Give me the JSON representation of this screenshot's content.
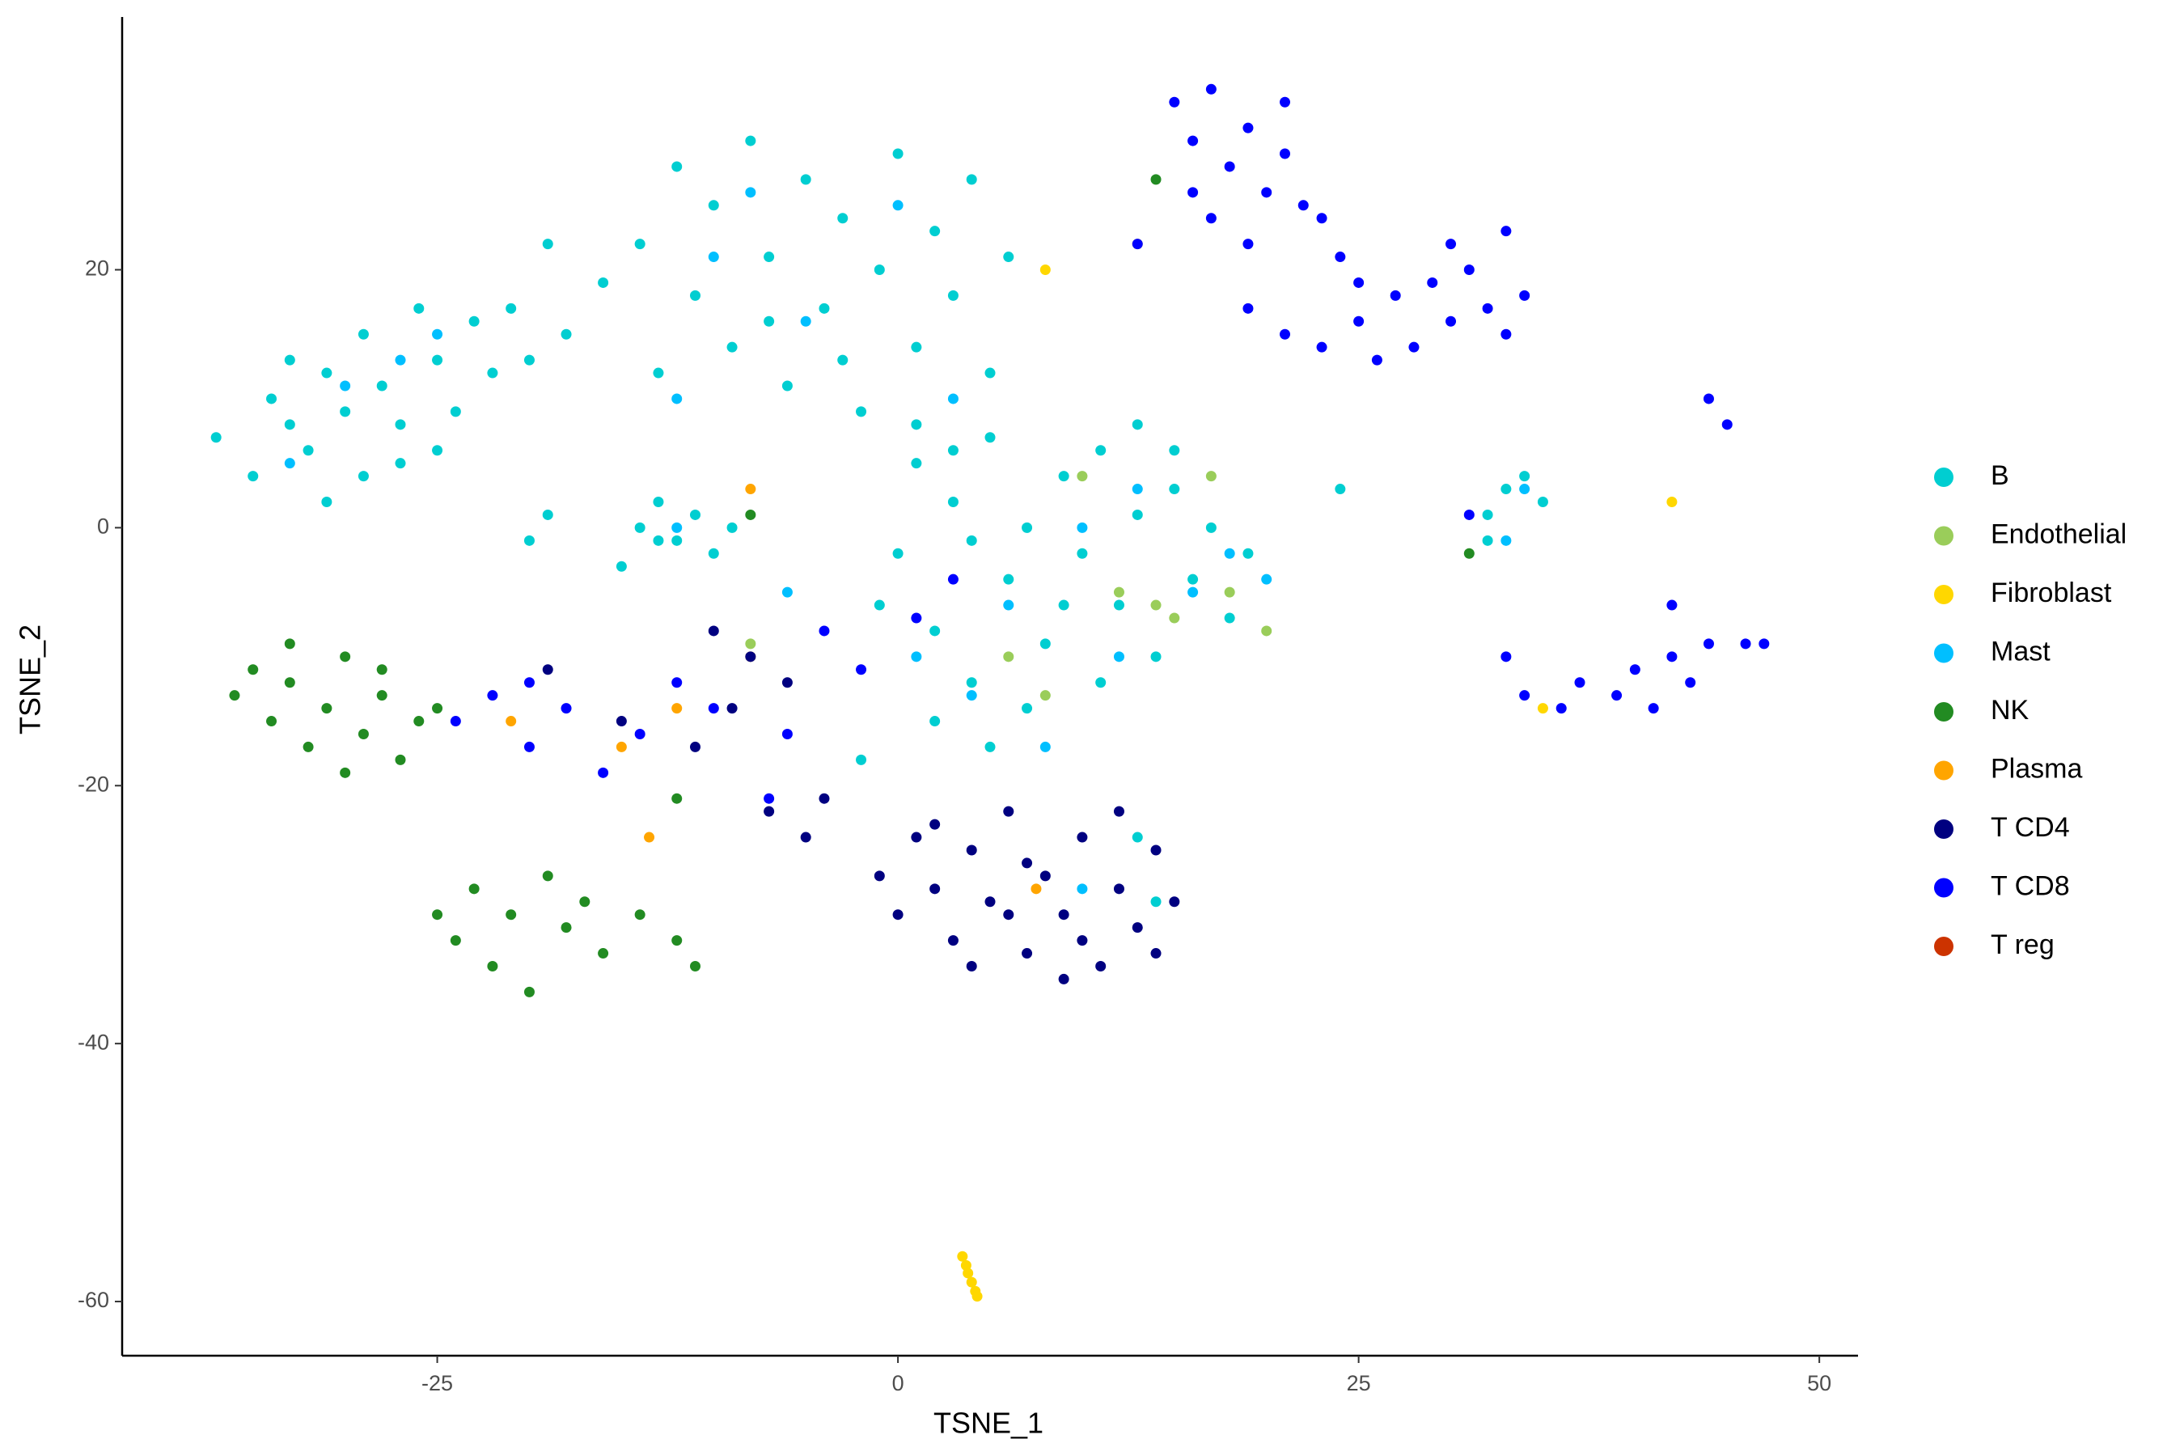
{
  "chart_data": {
    "type": "scatter",
    "xlabel": "TSNE_1",
    "ylabel": "TSNE_2",
    "xlim": [
      -42.1,
      52.1
    ],
    "ylim": [
      -64.2,
      39.6
    ],
    "xticks": [
      -25,
      0,
      25,
      50
    ],
    "yticks": [
      -60,
      -40,
      -20,
      0,
      20
    ],
    "grid": false,
    "legend": "right",
    "series": [
      {
        "name": "B",
        "color": "#00CED1",
        "x": [
          -37,
          -35,
          -34,
          -33,
          -32,
          -31,
          -30,
          -29,
          -28,
          -27,
          -26,
          -25,
          -24,
          -23,
          -29,
          -33,
          -31,
          -27,
          -25,
          -22,
          -14,
          -12,
          -11,
          -10,
          -9,
          -8,
          -7,
          -6,
          -5,
          -4,
          -3,
          -2,
          -1,
          0,
          1,
          2,
          3,
          4,
          5,
          6,
          -13,
          -7,
          -3,
          1,
          3,
          -16,
          -18,
          -20,
          -21,
          -19,
          0,
          1,
          2,
          3,
          4,
          5,
          6,
          7,
          8,
          9,
          10,
          11,
          12,
          13,
          14,
          15,
          16,
          17,
          18,
          19,
          2,
          5,
          7,
          11,
          13,
          15,
          9,
          4,
          -1,
          -2,
          -14,
          -13,
          -12,
          -11,
          -10,
          -13,
          -15,
          -9,
          32,
          33,
          34,
          35,
          32,
          24,
          -19,
          -20,
          14,
          13
        ],
        "values": [
          7,
          4,
          10,
          13,
          6,
          2,
          9,
          15,
          11,
          5,
          17,
          13,
          9,
          16,
          4,
          8,
          12,
          8,
          6,
          12,
          22,
          28,
          18,
          25,
          14,
          30,
          21,
          11,
          27,
          17,
          24,
          9,
          20,
          29,
          14,
          23,
          18,
          27,
          12,
          21,
          12,
          16,
          13,
          8,
          6,
          19,
          15,
          13,
          17,
          22,
          -2,
          5,
          -8,
          2,
          -12,
          7,
          -4,
          0,
          -9,
          4,
          -2,
          6,
          -6,
          1,
          -10,
          3,
          -4,
          0,
          -7,
          -2,
          -15,
          -17,
          -14,
          -12,
          8,
          6,
          -6,
          -1,
          -6,
          -18,
          0,
          2,
          -1,
          1,
          -2,
          -1,
          -3,
          0,
          1,
          3,
          4,
          2,
          -1,
          3,
          1,
          -1,
          -29,
          -24
        ]
      },
      {
        "name": "Endothelial",
        "color": "#9ACD5A",
        "x": [
          6,
          8,
          12,
          14,
          15,
          18,
          20,
          17,
          10,
          -8
        ],
        "values": [
          -10,
          -13,
          -5,
          -6,
          -7,
          -5,
          -8,
          4,
          4,
          -9
        ]
      },
      {
        "name": "Fibroblast",
        "color": "#FFD700",
        "x": [
          3.5,
          3.7,
          3.8,
          4,
          4.2,
          4.3,
          8,
          13,
          42,
          35
        ],
        "values": [
          -56.5,
          -57.2,
          -57.8,
          -58.5,
          -59.2,
          -59.6,
          20,
          22,
          2,
          -14
        ]
      },
      {
        "name": "Mast",
        "color": "#00BFFF",
        "x": [
          -30,
          -27,
          -33,
          -10,
          -5,
          0,
          3,
          -12,
          6,
          10,
          12,
          16,
          18,
          8,
          4,
          -12,
          34,
          33,
          -6,
          1,
          20,
          -25,
          -8,
          13,
          10
        ],
        "values": [
          11,
          13,
          5,
          21,
          16,
          25,
          10,
          10,
          -6,
          0,
          -10,
          -5,
          -2,
          -17,
          -13,
          0,
          3,
          -1,
          -5,
          -10,
          -4,
          15,
          26,
          3,
          -28
        ]
      },
      {
        "name": "NK",
        "color": "#228B22",
        "x": [
          -36,
          -35,
          -34,
          -33,
          -32,
          -31,
          -30,
          -29,
          -28,
          -27,
          -26,
          -25,
          -30,
          -33,
          -28,
          -25,
          -24,
          -23,
          -22,
          -21,
          -20,
          -19,
          -18,
          -17,
          -16,
          -14,
          -12,
          -11,
          14,
          31,
          -8,
          -12
        ],
        "values": [
          -13,
          -11,
          -15,
          -12,
          -17,
          -14,
          -10,
          -16,
          -13,
          -18,
          -15,
          -14,
          -19,
          -9,
          -11,
          -30,
          -32,
          -28,
          -34,
          -30,
          -36,
          -27,
          -31,
          -29,
          -33,
          -30,
          -32,
          -34,
          27,
          -2,
          1,
          -21
        ]
      },
      {
        "name": "Plasma",
        "color": "#FFA500",
        "x": [
          -21,
          -15,
          -13.5,
          -8,
          7.5,
          -8,
          -12
        ],
        "values": [
          -15,
          -17,
          -24,
          3,
          -28,
          -10,
          -14
        ]
      },
      {
        "name": "T CD4",
        "color": "#000080",
        "x": [
          -1,
          0,
          1,
          2,
          3,
          4,
          5,
          6,
          7,
          8,
          9,
          10,
          11,
          12,
          13,
          14,
          15,
          6,
          9,
          12,
          4,
          2,
          10,
          14,
          7,
          -8,
          -9,
          -6,
          -10,
          -7,
          -5,
          -4,
          -11,
          -19,
          -15
        ],
        "values": [
          -27,
          -30,
          -24,
          -28,
          -32,
          -25,
          -29,
          -22,
          -33,
          -27,
          -30,
          -24,
          -34,
          -28,
          -31,
          -25,
          -29,
          -30,
          -35,
          -22,
          -34,
          -23,
          -32,
          -33,
          -26,
          -10,
          -14,
          -12,
          -8,
          -22,
          -24,
          -21,
          -17,
          -11,
          -15
        ]
      },
      {
        "name": "T CD8",
        "color": "#0000FF",
        "x": [
          15,
          16,
          17,
          18,
          19,
          20,
          21,
          22,
          17,
          19,
          23,
          24,
          25,
          16,
          21,
          19,
          21,
          23,
          25,
          27,
          28,
          29,
          30,
          31,
          32,
          33,
          34,
          26,
          30,
          33,
          33,
          34,
          36,
          37,
          39,
          40,
          41,
          42,
          43,
          44,
          46,
          47,
          44,
          45,
          42,
          13,
          31,
          -24,
          -22,
          -20,
          -18,
          -16,
          -14,
          -12,
          -10,
          -6,
          -4,
          -2,
          1,
          3,
          -7,
          -20
        ],
        "values": [
          33,
          30,
          34,
          28,
          31,
          26,
          29,
          25,
          24,
          22,
          24,
          21,
          19,
          26,
          33,
          17,
          15,
          14,
          16,
          18,
          14,
          19,
          16,
          20,
          17,
          15,
          18,
          13,
          22,
          23,
          -10,
          -13,
          -14,
          -12,
          -13,
          -11,
          -14,
          -10,
          -12,
          -9,
          -9,
          -9,
          10,
          8,
          -6,
          22,
          1,
          -15,
          -13,
          -17,
          -14,
          -19,
          -16,
          -12,
          -14,
          -16,
          -8,
          -11,
          -7,
          -4,
          -21,
          -12
        ]
      },
      {
        "name": "T reg",
        "color": "#CC3300",
        "x": [],
        "values": []
      }
    ]
  }
}
